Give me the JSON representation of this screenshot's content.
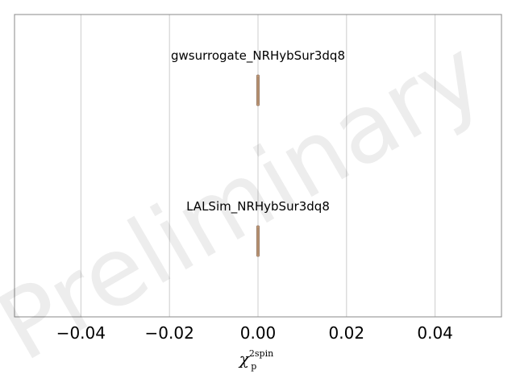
{
  "chart_data": {
    "type": "violin",
    "title": "",
    "xlabel": "χ",
    "xlabel_superscript": "2spin",
    "xlabel_subscript": "p",
    "ylabel": "",
    "xlim": [
      -0.055,
      0.055
    ],
    "x_ticks": [
      -0.04,
      -0.02,
      0.0,
      0.02,
      0.04
    ],
    "x_tick_labels": [
      "−0.04",
      "−0.02",
      "0.00",
      "0.02",
      "0.04"
    ],
    "grid": "vertical",
    "legend": "none",
    "series": [
      {
        "name": "gwsurrogate_NRHybSur3dq8",
        "center": 0.0,
        "min": 0.0,
        "max": 0.0
      },
      {
        "name": "LALSim_NRHybSur3dq8",
        "center": 0.0,
        "min": 0.0,
        "max": 0.0
      }
    ],
    "watermark": "Preliminary",
    "colors": {
      "violin_fill": "#c9a07a",
      "violin_edge": "#8a6a55",
      "grid": "#cccccc",
      "frame": "#888888"
    }
  }
}
